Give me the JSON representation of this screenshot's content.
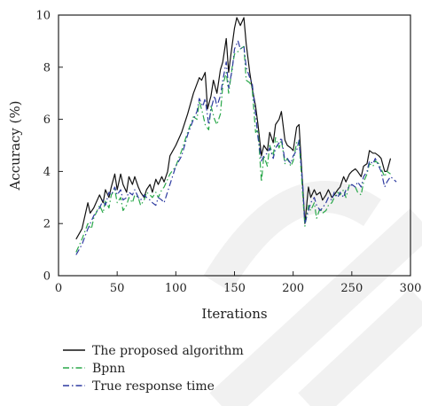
{
  "chart_data": {
    "type": "line",
    "title": "",
    "xlabel": "Iterations",
    "ylabel": "Accuracy (%)",
    "xlim": [
      0,
      300
    ],
    "ylim": [
      0,
      10
    ],
    "xticks": [
      0,
      50,
      100,
      150,
      200,
      250,
      300
    ],
    "yticks": [
      0,
      2,
      4,
      6,
      8,
      10
    ],
    "grid": false,
    "legend_position": "bottom-left",
    "series": [
      {
        "name": "The proposed algorithm",
        "color": "#111111",
        "style": "solid",
        "x": [
          15,
          20,
          25,
          27,
          30,
          35,
          38,
          40,
          43,
          45,
          48,
          50,
          53,
          55,
          58,
          60,
          63,
          65,
          68,
          70,
          73,
          75,
          78,
          80,
          83,
          85,
          88,
          90,
          93,
          95,
          100,
          105,
          110,
          115,
          120,
          122,
          125,
          127,
          130,
          132,
          135,
          138,
          140,
          143,
          145,
          147,
          150,
          152,
          155,
          158,
          160,
          163,
          165,
          168,
          170,
          173,
          175,
          178,
          180,
          183,
          185,
          188,
          190,
          193,
          195,
          198,
          200,
          203,
          205,
          208,
          210,
          213,
          215,
          218,
          220,
          223,
          225,
          228,
          230,
          233,
          235,
          238,
          240,
          243,
          245,
          248,
          250,
          253,
          255,
          258,
          260,
          263,
          265,
          268,
          270,
          273,
          275,
          278,
          280,
          283
        ],
        "y": [
          1.4,
          1.8,
          2.8,
          2.4,
          2.6,
          3.1,
          2.8,
          3.3,
          3.0,
          3.4,
          3.9,
          3.3,
          3.9,
          3.5,
          3.2,
          3.8,
          3.5,
          3.8,
          3.4,
          3.2,
          3.0,
          3.3,
          3.5,
          3.2,
          3.7,
          3.5,
          3.8,
          3.6,
          4.0,
          4.6,
          5.0,
          5.5,
          6.2,
          7.0,
          7.6,
          7.5,
          7.8,
          6.4,
          6.9,
          7.5,
          7.0,
          7.9,
          8.2,
          9.1,
          7.8,
          8.5,
          9.5,
          9.9,
          9.6,
          9.9,
          8.9,
          7.8,
          7.2,
          6.5,
          5.8,
          4.6,
          5.0,
          4.8,
          5.5,
          5.1,
          5.8,
          6.0,
          6.3,
          5.2,
          5.0,
          4.9,
          4.8,
          5.7,
          5.8,
          3.5,
          2.0,
          3.4,
          3.0,
          3.3,
          3.1,
          3.2,
          2.9,
          3.1,
          3.3,
          3.0,
          3.1,
          3.3,
          3.4,
          3.8,
          3.6,
          3.9,
          4.0,
          4.1,
          4.0,
          3.8,
          4.2,
          4.3,
          4.8,
          4.7,
          4.7,
          4.6,
          4.5,
          4.0,
          4.0,
          4.5
        ]
      },
      {
        "name": "Bpnn",
        "color": "#2aa84a",
        "style": "dashdot",
        "x": [
          15,
          20,
          25,
          28,
          30,
          35,
          38,
          40,
          43,
          45,
          48,
          50,
          53,
          55,
          58,
          60,
          63,
          65,
          68,
          70,
          73,
          75,
          78,
          80,
          83,
          85,
          88,
          90,
          95,
          100,
          105,
          110,
          115,
          118,
          120,
          123,
          125,
          128,
          130,
          133,
          135,
          138,
          140,
          143,
          145,
          148,
          150,
          153,
          155,
          158,
          160,
          163,
          165,
          168,
          170,
          173,
          175,
          178,
          180,
          183,
          185,
          188,
          190,
          193,
          195,
          198,
          200,
          203,
          205,
          208,
          210,
          213,
          215,
          218,
          220,
          223,
          225,
          228,
          230,
          233,
          235,
          238,
          240,
          243,
          245,
          248,
          250,
          253,
          255,
          258,
          260,
          263,
          265,
          268,
          270,
          273,
          275,
          278,
          280,
          283
        ],
        "y": [
          0.9,
          1.4,
          2.0,
          1.8,
          2.2,
          2.7,
          2.4,
          2.9,
          2.6,
          3.1,
          3.3,
          2.8,
          3.0,
          2.5,
          2.7,
          3.0,
          2.8,
          3.1,
          3.0,
          2.7,
          2.9,
          3.2,
          3.1,
          3.0,
          3.2,
          3.0,
          3.3,
          3.4,
          3.9,
          4.2,
          4.8,
          5.5,
          6.1,
          6.0,
          6.7,
          6.2,
          5.8,
          5.6,
          6.5,
          6.0,
          5.8,
          6.2,
          7.3,
          7.8,
          7.0,
          8.0,
          8.5,
          8.6,
          8.7,
          8.8,
          7.5,
          7.4,
          7.2,
          5.5,
          5.6,
          3.6,
          4.6,
          4.2,
          5.0,
          4.6,
          5.3,
          4.9,
          5.2,
          4.3,
          4.5,
          4.2,
          4.4,
          5.1,
          5.2,
          3.2,
          1.9,
          2.7,
          2.5,
          2.8,
          2.2,
          2.6,
          2.4,
          2.5,
          2.7,
          2.8,
          3.0,
          3.2,
          3.1,
          3.3,
          3.0,
          3.5,
          3.5,
          3.4,
          3.2,
          3.1,
          3.6,
          3.9,
          4.3,
          4.2,
          4.4,
          4.3,
          4.1,
          3.8,
          4.0,
          3.9
        ]
      },
      {
        "name": "True response time",
        "color": "#2d3aa0",
        "style": "dashdot",
        "x": [
          15,
          20,
          25,
          28,
          30,
          35,
          38,
          40,
          43,
          45,
          48,
          50,
          53,
          55,
          58,
          60,
          63,
          65,
          68,
          70,
          73,
          75,
          78,
          80,
          83,
          85,
          88,
          90,
          95,
          100,
          105,
          110,
          115,
          118,
          120,
          123,
          125,
          128,
          130,
          133,
          135,
          138,
          140,
          143,
          145,
          148,
          150,
          153,
          155,
          158,
          160,
          163,
          165,
          168,
          170,
          173,
          175,
          178,
          180,
          183,
          185,
          188,
          190,
          193,
          195,
          198,
          200,
          203,
          205,
          208,
          210,
          213,
          215,
          218,
          220,
          223,
          225,
          228,
          230,
          233,
          235,
          238,
          240,
          243,
          245,
          248,
          250,
          253,
          255,
          258,
          260,
          263,
          265,
          268,
          270,
          273,
          275,
          278,
          280,
          283,
          288
        ],
        "y": [
          0.8,
          1.2,
          1.8,
          2.1,
          2.3,
          2.6,
          2.9,
          2.7,
          3.2,
          3.1,
          3.4,
          3.1,
          3.3,
          2.9,
          3.0,
          3.2,
          3.1,
          3.3,
          3.0,
          2.9,
          3.1,
          3.0,
          2.9,
          2.8,
          2.7,
          3.0,
          2.9,
          2.8,
          3.5,
          4.2,
          4.6,
          5.4,
          6.0,
          6.3,
          6.8,
          6.5,
          6.8,
          5.8,
          6.4,
          6.9,
          6.5,
          6.9,
          7.5,
          8.2,
          7.2,
          7.9,
          8.7,
          9.0,
          8.7,
          8.8,
          8.0,
          7.6,
          7.4,
          6.2,
          5.3,
          4.4,
          4.6,
          4.7,
          4.9,
          4.5,
          4.9,
          5.1,
          5.3,
          4.4,
          4.5,
          4.3,
          4.6,
          4.8,
          5.2,
          3.6,
          2.0,
          2.5,
          2.8,
          3.0,
          2.7,
          2.5,
          2.6,
          2.8,
          3.0,
          2.9,
          3.2,
          3.0,
          3.2,
          3.0,
          3.3,
          3.4,
          3.5,
          3.4,
          3.6,
          3.4,
          3.8,
          4.0,
          4.4,
          4.3,
          4.5,
          4.2,
          4.0,
          3.4,
          3.6,
          3.8,
          3.6
        ]
      }
    ]
  }
}
